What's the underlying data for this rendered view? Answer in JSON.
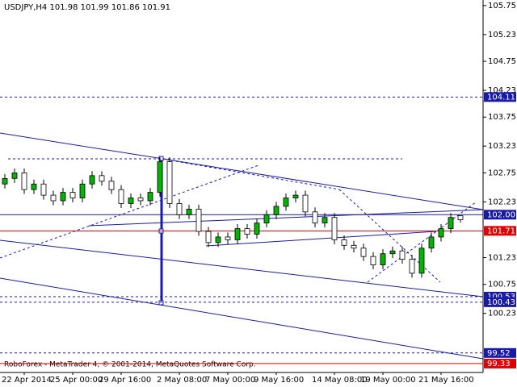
{
  "chart_data": {
    "type": "candlestick",
    "title": "USDJPY,H4  101.98 101.99 101.86 101.91",
    "footer": "RoboForex - MetaTrader 4, © 2001-2014, MetaQuotes Software Corp.",
    "categories": [
      null,
      null,
      "22 Apr 2014",
      null,
      null,
      null,
      null,
      "25 Apr 00:00",
      null,
      null,
      null,
      null,
      "29 Apr 16:00",
      null,
      null,
      null,
      null,
      null,
      "2 May 08:00",
      null,
      null,
      null,
      null,
      "7 May 00:00",
      null,
      null,
      null,
      null,
      "9 May 16:00",
      null,
      null,
      null,
      null,
      null,
      "14 May 08:00",
      null,
      null,
      null,
      null,
      "19 May 00:00",
      null,
      null,
      null,
      null,
      null,
      "21 May 16:00",
      null,
      null
    ],
    "open": [
      102.55,
      102.65,
      102.75,
      102.45,
      102.55,
      102.35,
      102.25,
      102.4,
      102.3,
      102.55,
      102.7,
      102.6,
      102.45,
      102.2,
      102.3,
      102.25,
      102.4,
      102.95,
      102.2,
      102.0,
      102.1,
      101.7,
      101.5,
      101.6,
      101.55,
      101.75,
      101.65,
      101.85,
      102.0,
      102.15,
      102.3,
      102.35,
      102.05,
      101.85,
      101.95,
      101.55,
      101.45,
      101.4,
      101.25,
      101.1,
      101.3,
      101.35,
      101.2,
      100.95,
      101.4,
      101.6,
      101.75,
      101.98
    ],
    "high": [
      102.73,
      102.83,
      102.83,
      102.63,
      102.63,
      102.43,
      102.48,
      102.48,
      102.63,
      102.78,
      102.78,
      102.68,
      102.53,
      102.38,
      102.38,
      102.48,
      103.03,
      103.03,
      102.28,
      102.18,
      102.18,
      101.78,
      101.68,
      101.68,
      101.83,
      101.83,
      101.93,
      102.08,
      102.23,
      102.38,
      102.43,
      102.43,
      102.13,
      102.03,
      102.03,
      101.63,
      101.53,
      101.48,
      101.33,
      101.38,
      101.43,
      101.43,
      101.28,
      101.48,
      101.68,
      101.83,
      102.03,
      101.99
    ],
    "low": [
      102.47,
      102.57,
      102.37,
      102.37,
      102.27,
      102.17,
      102.17,
      102.22,
      102.22,
      102.47,
      102.52,
      102.37,
      102.12,
      102.12,
      102.17,
      102.17,
      102.32,
      102.12,
      101.92,
      101.92,
      101.62,
      101.42,
      101.42,
      101.47,
      101.47,
      101.57,
      101.57,
      101.77,
      101.92,
      102.07,
      102.22,
      101.97,
      101.77,
      101.77,
      101.47,
      101.37,
      101.32,
      101.17,
      101.02,
      101.02,
      101.22,
      101.12,
      100.87,
      100.87,
      101.32,
      101.52,
      101.67,
      101.86
    ],
    "close": [
      102.65,
      102.75,
      102.45,
      102.55,
      102.35,
      102.25,
      102.4,
      102.3,
      102.55,
      102.7,
      102.6,
      102.45,
      102.2,
      102.3,
      102.25,
      102.4,
      102.95,
      102.2,
      102.0,
      102.1,
      101.7,
      101.5,
      101.6,
      101.55,
      101.75,
      101.65,
      101.85,
      102.0,
      102.15,
      102.3,
      102.35,
      102.05,
      101.85,
      101.95,
      101.55,
      101.45,
      101.4,
      101.25,
      101.1,
      101.3,
      101.35,
      101.2,
      100.95,
      101.4,
      101.6,
      101.75,
      101.95,
      101.91
    ],
    "up_color": "#00b400",
    "down_color": "#000000",
    "ylim": [
      99.17,
      105.85
    ],
    "yticks": [
      105.75,
      105.23,
      104.75,
      104.23,
      103.75,
      103.23,
      102.75,
      102.23,
      101.23,
      100.75,
      100.23
    ],
    "levels": [
      {
        "value": 104.11,
        "label": "104.11",
        "color": "#1a1aa8",
        "style": "dash"
      },
      {
        "value": 102,
        "label": "102.00",
        "color": "#1a1aa8",
        "style": "solid"
      },
      {
        "value": 101.71,
        "label": "101.71",
        "color": "#e00000",
        "style": "solid"
      },
      {
        "value": 100.53,
        "label": "100.53",
        "color": "#1a1aa8",
        "style": "dash"
      },
      {
        "value": 100.43,
        "label": "100.43",
        "color": "#1a1aa8",
        "style": "dash"
      },
      {
        "value": 99.52,
        "label": "99.52",
        "color": "#1a1aa8",
        "style": "dash"
      },
      {
        "value": 99.33,
        "label": "99.33",
        "color": "#e00000",
        "style": "solid"
      }
    ]
  }
}
